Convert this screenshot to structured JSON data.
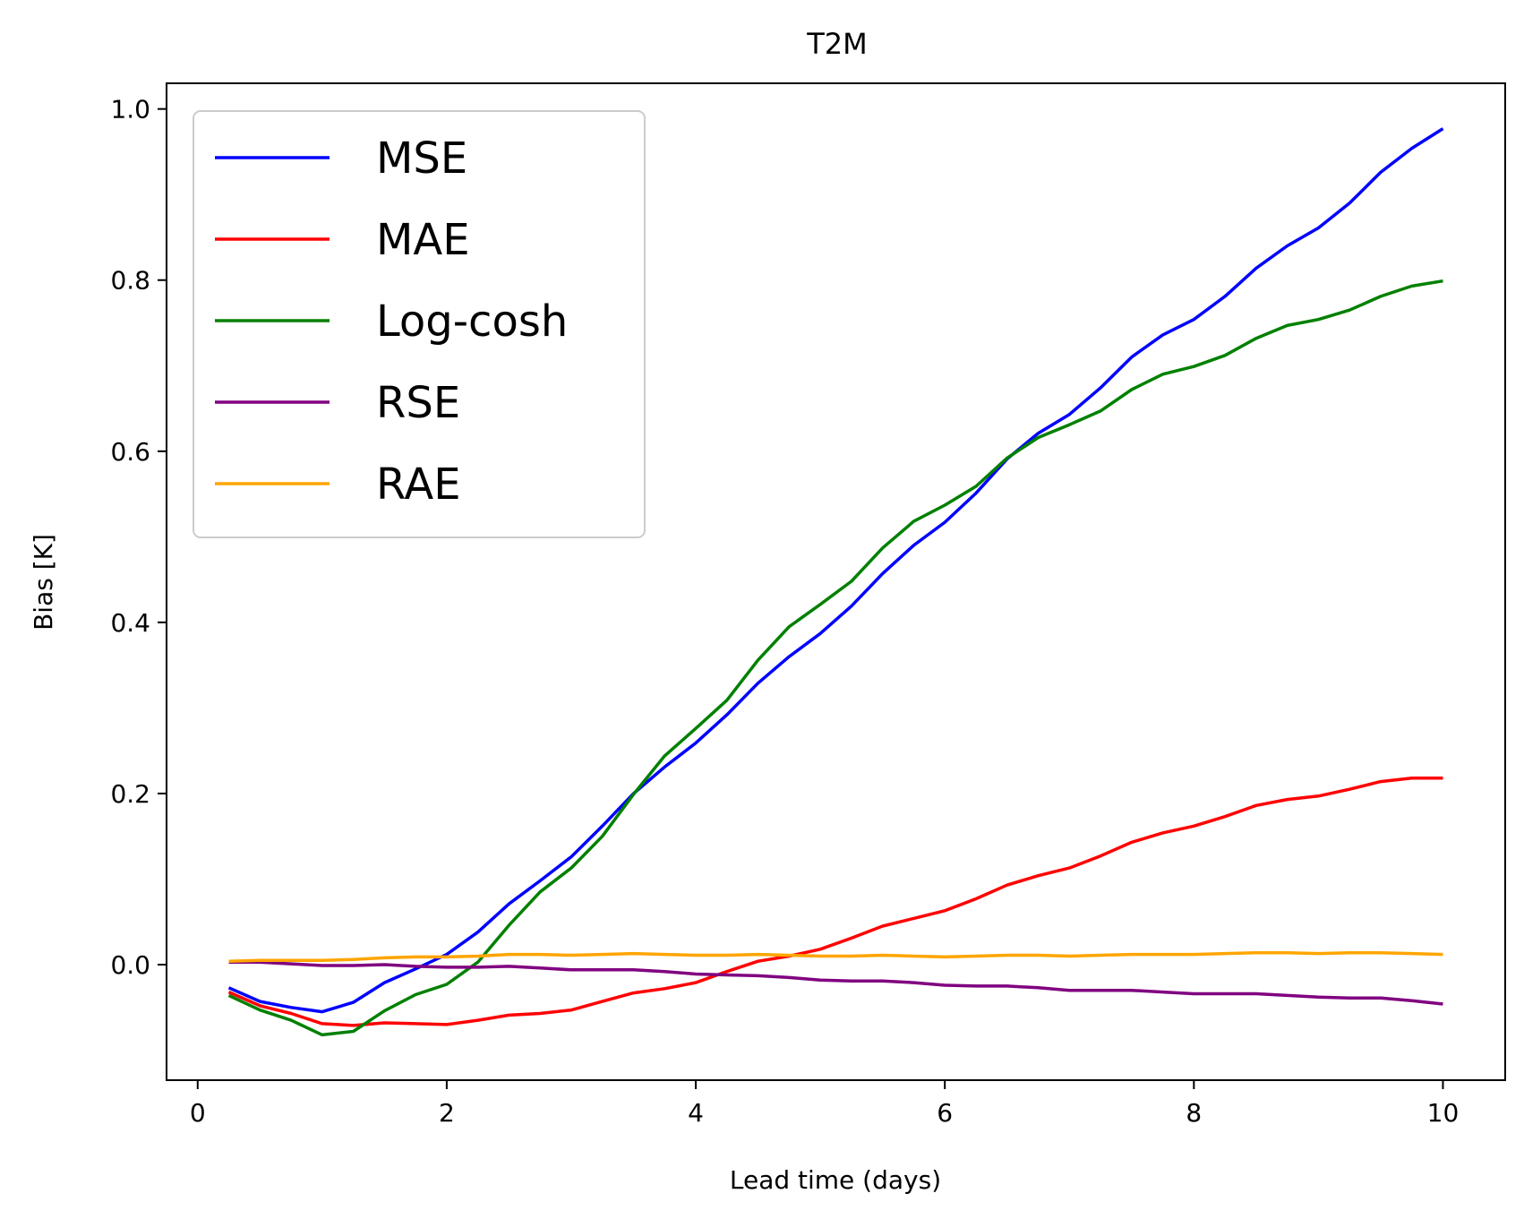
{
  "chart_data": {
    "type": "line",
    "title": "T2M",
    "xlabel": "Lead time (days)",
    "ylabel": "Bias [K]",
    "xlim": [
      -0.25,
      10.5
    ],
    "ylim": [
      -0.135,
      1.03
    ],
    "xticks": [
      0,
      2,
      4,
      6,
      8,
      10
    ],
    "xtick_labels": [
      "0",
      "2",
      "4",
      "6",
      "8",
      "10"
    ],
    "yticks": [
      0.0,
      0.2,
      0.4,
      0.6,
      0.8,
      1.0
    ],
    "ytick_labels": [
      "0.0",
      "0.2",
      "0.4",
      "0.6",
      "0.8",
      "1.0"
    ],
    "grid": false,
    "legend_position": "upper-left",
    "x": [
      0.25,
      0.5,
      0.75,
      1.0,
      1.25,
      1.5,
      1.75,
      2.0,
      2.25,
      2.5,
      2.75,
      3.0,
      3.25,
      3.5,
      3.75,
      4.0,
      4.25,
      4.5,
      4.75,
      5.0,
      5.25,
      5.5,
      5.75,
      6.0,
      6.25,
      6.5,
      6.75,
      7.0,
      7.25,
      7.5,
      7.75,
      8.0,
      8.25,
      8.5,
      8.75,
      9.0,
      9.25,
      9.5,
      9.75,
      10.0
    ],
    "series": [
      {
        "name": "MSE",
        "color": "#0000ff",
        "values": [
          -0.027,
          -0.043,
          -0.05,
          -0.055,
          -0.044,
          -0.021,
          -0.005,
          0.012,
          0.038,
          0.071,
          0.098,
          0.126,
          0.162,
          0.2,
          0.231,
          0.259,
          0.292,
          0.329,
          0.36,
          0.387,
          0.419,
          0.457,
          0.49,
          0.517,
          0.551,
          0.591,
          0.621,
          0.643,
          0.674,
          0.71,
          0.736,
          0.754,
          0.781,
          0.814,
          0.84,
          0.861,
          0.89,
          0.926,
          0.954,
          0.977
        ]
      },
      {
        "name": "MAE",
        "color": "#ff0000",
        "values": [
          -0.032,
          -0.048,
          -0.057,
          -0.069,
          -0.071,
          -0.068,
          -0.069,
          -0.07,
          -0.065,
          -0.059,
          -0.057,
          -0.053,
          -0.043,
          -0.033,
          -0.028,
          -0.021,
          -0.008,
          0.004,
          0.01,
          0.018,
          0.031,
          0.045,
          0.054,
          0.063,
          0.077,
          0.093,
          0.104,
          0.113,
          0.127,
          0.143,
          0.154,
          0.162,
          0.173,
          0.186,
          0.193,
          0.197,
          0.205,
          0.214,
          0.218,
          0.218
        ]
      },
      {
        "name": "Log-cosh",
        "color": "#008000",
        "values": [
          -0.036,
          -0.053,
          -0.065,
          -0.082,
          -0.078,
          -0.054,
          -0.035,
          -0.023,
          0.003,
          0.046,
          0.085,
          0.113,
          0.15,
          0.199,
          0.244,
          0.276,
          0.309,
          0.356,
          0.395,
          0.421,
          0.448,
          0.487,
          0.518,
          0.537,
          0.559,
          0.592,
          0.616,
          0.631,
          0.647,
          0.672,
          0.69,
          0.699,
          0.712,
          0.732,
          0.747,
          0.754,
          0.765,
          0.781,
          0.793,
          0.799
        ]
      },
      {
        "name": "RSE",
        "color": "#800080",
        "values": [
          0.003,
          0.003,
          0.001,
          -0.001,
          -0.001,
          0.0,
          -0.002,
          -0.003,
          -0.003,
          -0.002,
          -0.004,
          -0.006,
          -0.006,
          -0.006,
          -0.008,
          -0.011,
          -0.012,
          -0.013,
          -0.015,
          -0.018,
          -0.019,
          -0.019,
          -0.021,
          -0.024,
          -0.025,
          -0.025,
          -0.027,
          -0.03,
          -0.03,
          -0.03,
          -0.032,
          -0.034,
          -0.034,
          -0.034,
          -0.036,
          -0.038,
          -0.039,
          -0.039,
          -0.042,
          -0.046
        ]
      },
      {
        "name": "RAE",
        "color": "#ffa500",
        "values": [
          0.004,
          0.005,
          0.005,
          0.005,
          0.006,
          0.008,
          0.009,
          0.009,
          0.01,
          0.012,
          0.012,
          0.011,
          0.012,
          0.013,
          0.012,
          0.011,
          0.011,
          0.012,
          0.011,
          0.01,
          0.01,
          0.011,
          0.01,
          0.009,
          0.01,
          0.011,
          0.011,
          0.01,
          0.011,
          0.012,
          0.012,
          0.012,
          0.013,
          0.014,
          0.014,
          0.013,
          0.014,
          0.014,
          0.013,
          0.012
        ]
      }
    ]
  }
}
